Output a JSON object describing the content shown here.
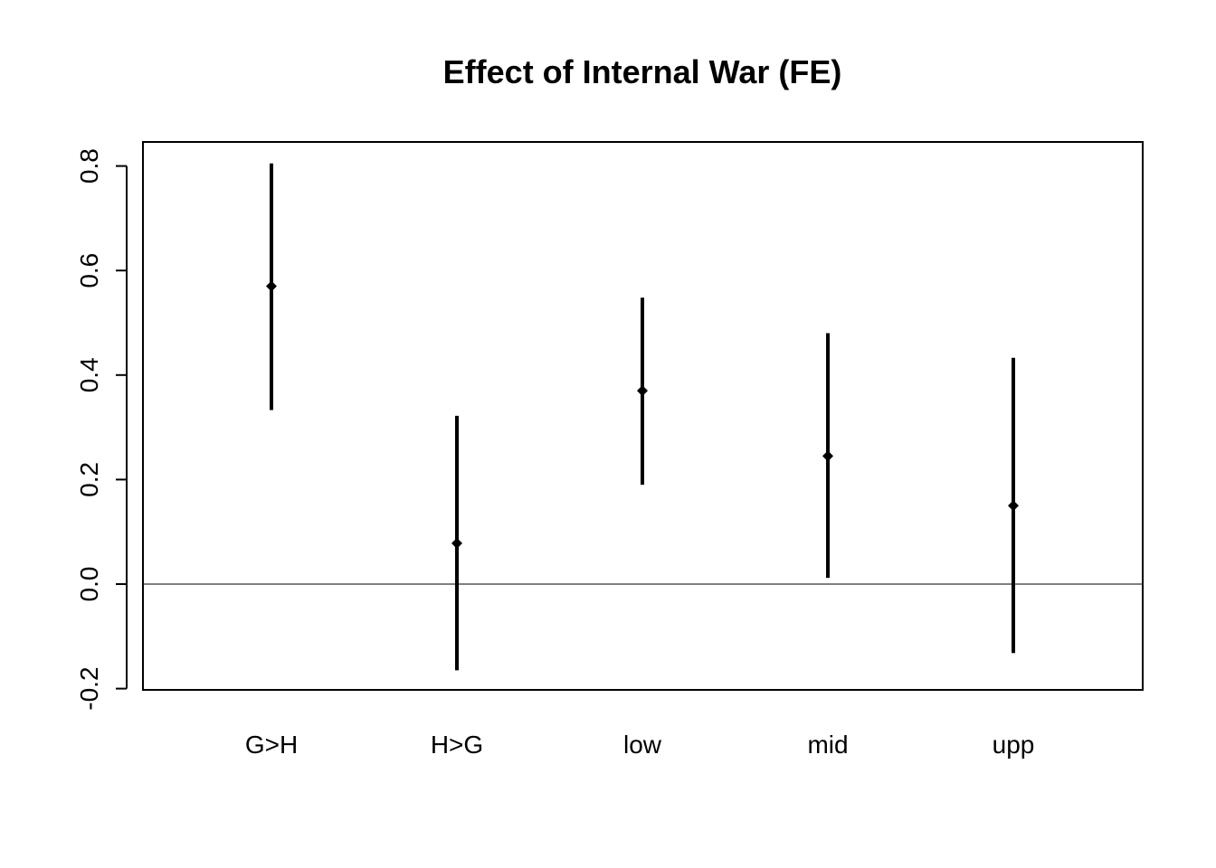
{
  "chart_data": {
    "type": "scatter",
    "title": "Effect of Internal War (FE)",
    "xlabel": "",
    "ylabel": "",
    "categories": [
      "G>H",
      "H>G",
      "low",
      "mid",
      "upp"
    ],
    "series": [
      {
        "estimate": [
          0.57,
          0.078,
          0.37,
          0.245,
          0.15
        ],
        "lower": [
          0.333,
          -0.165,
          0.19,
          0.012,
          -0.132
        ],
        "upper": [
          0.805,
          0.322,
          0.548,
          0.48,
          0.433
        ]
      }
    ],
    "ylim": [
      -0.2,
      0.8
    ],
    "yticks": [
      "-0.2",
      "0.0",
      "0.2",
      "0.4",
      "0.6",
      "0.8"
    ],
    "reference_line": 0.0,
    "grid": false,
    "legend": "none",
    "colors": {
      "marks": "#000000",
      "axes": "#000000"
    }
  }
}
